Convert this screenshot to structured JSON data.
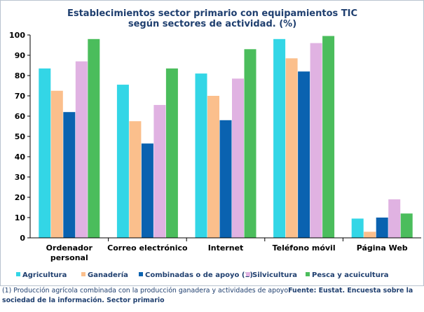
{
  "chart_data": {
    "type": "bar",
    "title": [
      "Establecimientos sector primario con equipamientos TIC",
      "según sectores de actividad. (%)"
    ],
    "categories": [
      [
        "Ordenador",
        "personal"
      ],
      [
        "Correo electrónico"
      ],
      [
        "Internet"
      ],
      [
        "Teléfono móvil"
      ],
      [
        "Página Web"
      ]
    ],
    "series": [
      {
        "name": "Agricultura",
        "color": "#33d6e6",
        "values": [
          83.5,
          75.5,
          81,
          98,
          9.5
        ]
      },
      {
        "name": "Ganadería",
        "color": "#fbbf8c",
        "values": [
          72.5,
          57.5,
          70,
          88.5,
          3
        ]
      },
      {
        "name": "Combinadas o de apoyo (1)",
        "color": "#0a62b0",
        "values": [
          62,
          46.5,
          58,
          82,
          10
        ]
      },
      {
        "name": "Silvicultura",
        "color": "#e0b2e2",
        "values": [
          87,
          65.5,
          78.5,
          96,
          19
        ]
      },
      {
        "name": "Pesca y acuicultura",
        "color": "#4bbd5c",
        "values": [
          98,
          83.5,
          93,
          99.5,
          12
        ]
      }
    ],
    "ylim": [
      0,
      100
    ],
    "yticks": [
      "0",
      "10",
      "20",
      "30",
      "40",
      "50",
      "60",
      "70",
      "80",
      "90",
      "100"
    ],
    "xlabel": "",
    "ylabel": ""
  },
  "footnote": {
    "note": "(1)  Producción agrícola combinada con la producción ganadera y actividades de apoyo",
    "source": "Fuente: Eustat. Encuesta sobre la sociedad de la información. Sector primario"
  }
}
